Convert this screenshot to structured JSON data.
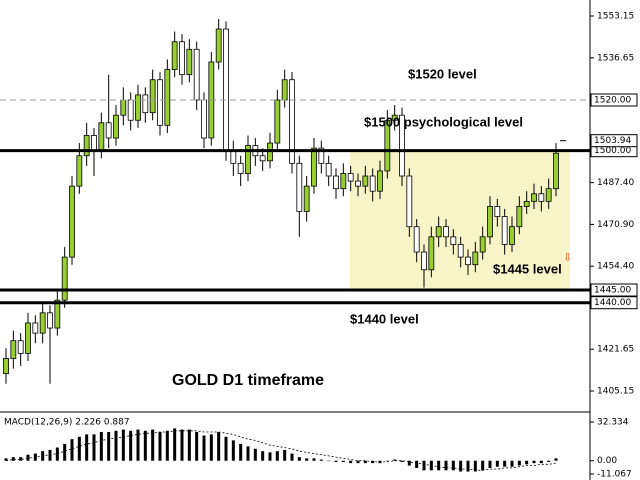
{
  "chart_data": {
    "type": "candlestick",
    "symbol_title": "GOLD D1 timeframe",
    "annotations": [
      "$1520 level",
      "$1500 psychological level",
      "$1445  level",
      "$1440  level"
    ],
    "open": [
      1412,
      1418,
      1425,
      1420,
      1432,
      1428,
      1436,
      1430,
      1441,
      1458,
      1486,
      1498,
      1506,
      1500,
      1511,
      1505,
      1514,
      1520,
      1512,
      1522,
      1515,
      1528,
      1510,
      1532,
      1543,
      1530,
      1540,
      1520,
      1505,
      1535,
      1548,
      1500,
      1495,
      1491,
      1502,
      1498,
      1496,
      1503,
      1520,
      1528,
      1495,
      1476,
      1486,
      1501,
      1495,
      1490,
      1485,
      1491,
      1488,
      1486,
      1490,
      1484,
      1492,
      1512,
      1514,
      1490,
      1470,
      1460,
      1453,
      1466,
      1470,
      1466,
      1463,
      1458,
      1455,
      1460,
      1466,
      1478,
      1474,
      1463,
      1470,
      1478,
      1480,
      1483,
      1480,
      1485
    ],
    "high": [
      1422,
      1429,
      1428,
      1436,
      1435,
      1440,
      1439,
      1445,
      1462,
      1490,
      1503,
      1511,
      1509,
      1515,
      1530,
      1518,
      1525,
      1523,
      1526,
      1525,
      1532,
      1531,
      1536,
      1547,
      1546,
      1544,
      1543,
      1523,
      1539,
      1552,
      1551,
      1504,
      1498,
      1506,
      1505,
      1501,
      1507,
      1524,
      1532,
      1531,
      1498,
      1490,
      1505,
      1504,
      1498,
      1493,
      1495,
      1494,
      1491,
      1494,
      1493,
      1496,
      1516,
      1518,
      1517,
      1493,
      1473,
      1463,
      1470,
      1474,
      1473,
      1469,
      1466,
      1461,
      1464,
      1470,
      1482,
      1481,
      1477,
      1474,
      1482,
      1484,
      1487,
      1486,
      1489,
      1503
    ],
    "low": [
      1408,
      1414,
      1415,
      1417,
      1424,
      1424,
      1408,
      1427,
      1438,
      1455,
      1483,
      1494,
      1490,
      1497,
      1501,
      1502,
      1510,
      1508,
      1509,
      1511,
      1512,
      1506,
      1507,
      1529,
      1526,
      1527,
      1516,
      1501,
      1502,
      1532,
      1496,
      1490,
      1486,
      1488,
      1494,
      1492,
      1493,
      1500,
      1517,
      1491,
      1466,
      1472,
      1483,
      1491,
      1486,
      1481,
      1482,
      1484,
      1482,
      1483,
      1480,
      1481,
      1489,
      1508,
      1486,
      1466,
      1456,
      1446,
      1450,
      1462,
      1462,
      1459,
      1454,
      1451,
      1452,
      1457,
      1463,
      1470,
      1459,
      1460,
      1467,
      1475,
      1477,
      1476,
      1477,
      1482
    ],
    "close": [
      1418,
      1425,
      1420,
      1432,
      1428,
      1436,
      1430,
      1441,
      1458,
      1486,
      1498,
      1506,
      1500,
      1511,
      1505,
      1514,
      1520,
      1512,
      1522,
      1515,
      1528,
      1510,
      1532,
      1543,
      1530,
      1540,
      1520,
      1505,
      1535,
      1548,
      1500,
      1495,
      1491,
      1502,
      1498,
      1496,
      1503,
      1520,
      1528,
      1495,
      1476,
      1486,
      1501,
      1495,
      1490,
      1485,
      1491,
      1488,
      1486,
      1490,
      1484,
      1492,
      1512,
      1514,
      1490,
      1470,
      1460,
      1453,
      1466,
      1470,
      1466,
      1463,
      1458,
      1455,
      1460,
      1466,
      1478,
      1474,
      1463,
      1470,
      1478,
      1480,
      1483,
      1480,
      1485,
      1499
    ],
    "up_color": "#9acd32",
    "down_color": "#ffffff",
    "ylim": [
      1405.15,
      1553.15
    ],
    "yticks": [
      1553.15,
      1536.65,
      {
        "value": 1487.4,
        "label": "1487.40"
      },
      {
        "value": 1470.9,
        "label": "1470.90"
      },
      {
        "value": 1454.4,
        "label": "1454.40"
      },
      1421.65,
      1405.15
    ],
    "levels": [
      {
        "value": 1520,
        "label": "1520.00",
        "style": "dashed"
      },
      {
        "value": 1500,
        "label": "1500.00",
        "style": "solid"
      },
      {
        "value": 1445,
        "label": "1445.00",
        "style": "solid"
      },
      {
        "value": 1440,
        "label": "1440.00",
        "style": "solid"
      }
    ],
    "current_price": 1503.94,
    "zone_color": "#f7f5c8",
    "macd": {
      "title": "MACD(12,26,9) 2.226 0.887",
      "histogram": [
        2,
        3,
        3,
        5,
        6,
        8,
        9,
        11,
        14,
        18,
        20,
        22,
        22,
        24,
        24,
        25,
        26,
        25,
        26,
        25,
        26,
        24,
        25,
        27,
        26,
        26,
        24,
        21,
        22,
        24,
        20,
        17,
        14,
        12,
        10,
        8,
        7,
        8,
        9,
        6,
        3,
        2,
        2,
        1,
        0,
        -1,
        -1,
        -2,
        -2,
        -2,
        -2,
        -2,
        0,
        1,
        -1,
        -4,
        -6,
        -8,
        -8,
        -8,
        -8,
        -8,
        -9,
        -9,
        -9,
        -8,
        -6,
        -5,
        -5,
        -5,
        -4,
        -3,
        -2,
        -2,
        -1,
        2
      ],
      "signal": [
        0,
        1,
        1,
        2,
        3,
        4,
        5,
        6,
        8,
        10,
        12,
        14,
        15,
        17,
        18,
        19,
        20,
        21,
        22,
        23,
        23,
        24,
        24,
        25,
        25,
        25,
        25,
        24,
        24,
        24,
        23,
        22,
        20,
        18,
        17,
        15,
        13,
        12,
        11,
        10,
        8,
        7,
        6,
        5,
        4,
        3,
        2,
        1,
        0,
        0,
        -1,
        -1,
        -1,
        0,
        0,
        -1,
        -2,
        -3,
        -4,
        -5,
        -6,
        -6,
        -7,
        -7,
        -8,
        -8,
        -7,
        -7,
        -6,
        -6,
        -5,
        -4,
        -4,
        -3,
        -3,
        -2
      ],
      "ylim": [
        -11.067,
        32.334
      ],
      "yticks": [
        32.334,
        {
          "value": 0,
          "label": "0.00"
        },
        -11.067
      ]
    }
  }
}
